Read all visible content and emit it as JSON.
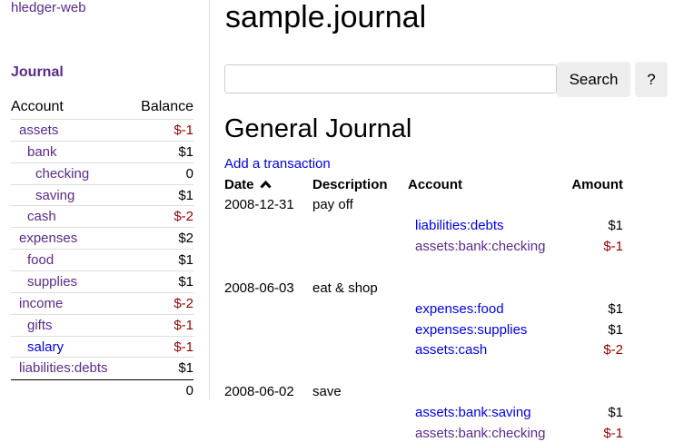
{
  "sidebar": {
    "app_link": "hledger-web",
    "journal_link": "Journal",
    "col_account": "Account",
    "col_balance": "Balance",
    "accounts": [
      {
        "name": "assets",
        "balance": "$-1",
        "level": 0,
        "visited": true
      },
      {
        "name": "bank",
        "balance": "$1",
        "level": 1,
        "visited": true
      },
      {
        "name": "checking",
        "balance": "0",
        "level": 2,
        "visited": true
      },
      {
        "name": "saving",
        "balance": "$1",
        "level": 2,
        "visited": true
      },
      {
        "name": "cash",
        "balance": "$-2",
        "level": 1,
        "visited": true
      },
      {
        "name": "expenses",
        "balance": "$2",
        "level": 0,
        "visited": true
      },
      {
        "name": "food",
        "balance": "$1",
        "level": 1,
        "visited": true
      },
      {
        "name": "supplies",
        "balance": "$1",
        "level": 1,
        "visited": true
      },
      {
        "name": "income",
        "balance": "$-2",
        "level": 0,
        "visited": true
      },
      {
        "name": "gifts",
        "balance": "$-1",
        "level": 1,
        "visited": true
      },
      {
        "name": "salary",
        "balance": "$-1",
        "level": 1,
        "visited": false
      },
      {
        "name": "liabilities:debts",
        "balance": "$1",
        "level": 0,
        "visited": true
      }
    ],
    "total": "0"
  },
  "header": {
    "title": "sample.journal"
  },
  "search": {
    "value": "",
    "placeholder": "",
    "button": "Search",
    "help": "?"
  },
  "main": {
    "title": "General Journal",
    "add_link": "Add a transaction",
    "columns": {
      "date": "Date",
      "description": "Description",
      "account": "Account",
      "amount": "Amount"
    },
    "sort_icon": "chevron-up-icon",
    "transactions": [
      {
        "date": "2008-12-31",
        "description": "pay off",
        "postings": [
          {
            "account": "liabilities:debts",
            "amount": "$1",
            "visited": false
          },
          {
            "account": "assets:bank:checking",
            "amount": "$-1",
            "visited": true
          }
        ]
      },
      {
        "date": "2008-06-03",
        "description": "eat & shop",
        "postings": [
          {
            "account": "expenses:food",
            "amount": "$1",
            "visited": false
          },
          {
            "account": "expenses:supplies",
            "amount": "$1",
            "visited": false
          },
          {
            "account": "assets:cash",
            "amount": "$-2",
            "visited": false
          }
        ]
      },
      {
        "date": "2008-06-02",
        "description": "save",
        "postings": [
          {
            "account": "assets:bank:saving",
            "amount": "$1",
            "visited": false
          },
          {
            "account": "assets:bank:checking",
            "amount": "$-1",
            "visited": true
          }
        ]
      }
    ]
  },
  "colors": {
    "visited": "#5a2a8c",
    "link": "#0000ee",
    "negative": "#990000"
  }
}
